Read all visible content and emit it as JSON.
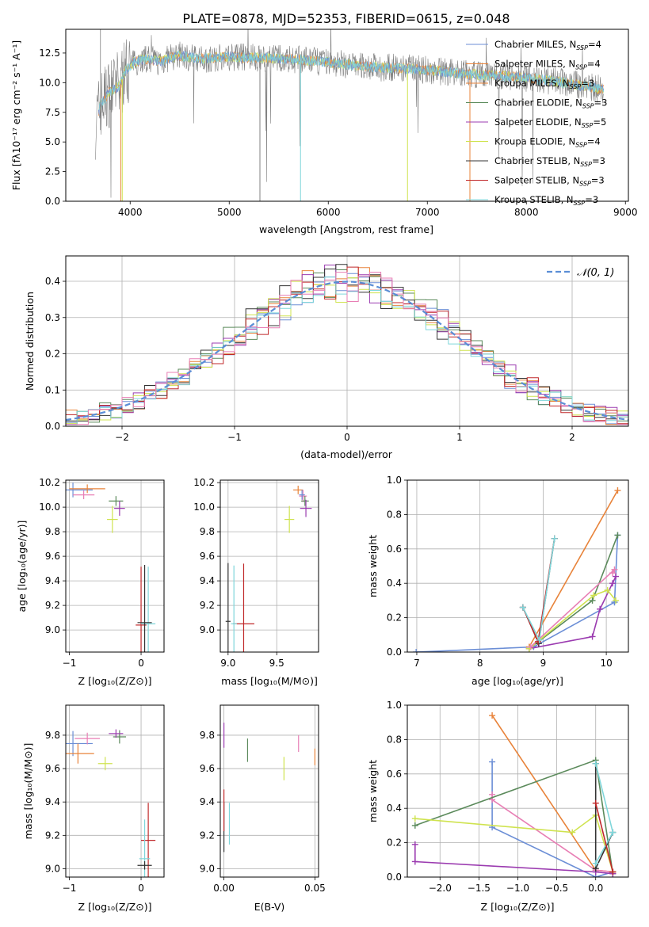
{
  "figure": {
    "title": "PLATE=0878, MJD=52353, FIBERID=0615, z=0.048"
  },
  "colors": {
    "Chabrier MILES": "#6b8ed6",
    "Salpeter MILES": "#e8833a",
    "Kroupa MILES": "#5b8a5b",
    "Chabrier ELODIE": "#5b8a5b",
    "Salpeter ELODIE": "#9b3bb0",
    "Kroupa ELODIE": "#cfe34f",
    "Chabrier STELIB": "#333333",
    "Salpeter STELIB": "#c0282a",
    "Kroupa STELIB": "#7fd6da",
    "spectrum_data": "#808080",
    "gaussian": "#5b8ed6",
    "pink": "#e87fb5"
  },
  "chart_data": [
    {
      "id": "spectrum",
      "type": "line",
      "title": "PLATE=0878, MJD=52353, FIBERID=0615, z=0.048",
      "xlabel": "wavelength [Angstrom, rest frame]",
      "ylabel": "Flux [fλ10⁻¹⁷ erg cm⁻² s⁻¹ A⁻¹]",
      "xlim": [
        3350,
        9030
      ],
      "ylim": [
        0,
        14.5
      ],
      "xticks": [
        "4000",
        "5000",
        "6000",
        "7000",
        "8000",
        "9000"
      ],
      "xtick_values": [
        4000,
        5000,
        6000,
        7000,
        8000,
        9000
      ],
      "yticks": [
        "0.0",
        "2.5",
        "5.0",
        "7.5",
        "10.0",
        "12.5"
      ],
      "ytick_values": [
        0,
        2.5,
        5,
        7.5,
        10,
        12.5
      ],
      "continuum": {
        "x": [
          3650,
          3700,
          3800,
          3900,
          3950,
          4050,
          4150,
          4300,
          4500,
          4700,
          5000,
          5300,
          5600,
          5900,
          6200,
          6500,
          6800,
          7100,
          7400,
          7700,
          8000,
          8300,
          8600,
          8780
        ],
        "y": [
          6.5,
          8.2,
          9.3,
          9.8,
          11.0,
          11.8,
          12.0,
          11.8,
          12.3,
          12.0,
          12.2,
          12.1,
          12.0,
          11.8,
          11.5,
          11.3,
          11.2,
          11.0,
          10.7,
          10.6,
          10.4,
          10.1,
          9.7,
          9.4
        ]
      },
      "legend": [
        {
          "label": "Chabrier MILES, N",
          "sub": "SSP",
          "value": "=4"
        },
        {
          "label": "Salpeter MILES, N",
          "sub": "SSP",
          "value": "=4"
        },
        {
          "label": "Kroupa MILES, N",
          "sub": "SSP",
          "value": "=3"
        },
        {
          "label": "Chabrier ELODIE, N",
          "sub": "SSP",
          "value": "=3"
        },
        {
          "label": "Salpeter ELODIE, N",
          "sub": "SSP",
          "value": "=5"
        },
        {
          "label": "Kroupa ELODIE, N",
          "sub": "SSP",
          "value": "=4"
        },
        {
          "label": "Chabrier STELIB, N",
          "sub": "SSP",
          "value": "=3"
        },
        {
          "label": "Salpeter STELIB, N",
          "sub": "SSP",
          "value": "=3"
        },
        {
          "label": "Kroupa STELIB, N",
          "sub": "SSP",
          "value": "=3"
        }
      ],
      "legend_placement": "top-right",
      "grid": false
    },
    {
      "id": "residuals",
      "type": "histogram",
      "xlabel": "(data-model)/error",
      "ylabel": "Normed distribution",
      "xlim": [
        -2.5,
        2.5
      ],
      "ylim": [
        0,
        0.47
      ],
      "xticks": [
        "−2",
        "−1",
        "0",
        "1",
        "2"
      ],
      "xtick_values": [
        -2,
        -1,
        0,
        1,
        2
      ],
      "yticks": [
        "0.0",
        "0.1",
        "0.2",
        "0.3",
        "0.4"
      ],
      "ytick_values": [
        0,
        0.1,
        0.2,
        0.3,
        0.4
      ],
      "legend_label": "𝒩(0, 1)",
      "legend_placement": "top-right",
      "grid": true
    },
    {
      "id": "age_vs_z",
      "type": "errorbar",
      "xlabel": "Z [log₁₀(Z/Z⊙)]",
      "ylabel": "age  [log₁₀(age/yr)]",
      "xlim": [
        -1.05,
        0.32
      ],
      "ylim": [
        8.82,
        10.22
      ],
      "xticks": [
        "−1",
        "0"
      ],
      "xtick_values": [
        -1,
        0
      ],
      "yticks": [
        "9.0",
        "9.2",
        "9.4",
        "9.6",
        "9.8",
        "10.0",
        "10.2"
      ],
      "ytick_values": [
        9.0,
        9.2,
        9.4,
        9.6,
        9.8,
        10.0,
        10.2
      ],
      "points": [
        {
          "c": "Chabrier MILES",
          "x": -0.95,
          "y": 10.14,
          "ex": 0.55,
          "ey": 0.12
        },
        {
          "c": "Salpeter MILES",
          "x": -0.75,
          "y": 10.15,
          "ex": 0.5,
          "ey": 0.07
        },
        {
          "c": "pink",
          "x": -0.8,
          "y": 10.1,
          "ex": 0.3,
          "ey": 0.07
        },
        {
          "c": "Chabrier ELODIE",
          "x": -0.35,
          "y": 10.05,
          "ex": 0.2,
          "ey": 0.08
        },
        {
          "c": "Salpeter ELODIE",
          "x": -0.3,
          "y": 9.99,
          "ex": 0.15,
          "ey": 0.12
        },
        {
          "c": "Kroupa ELODIE",
          "x": -0.4,
          "y": 9.9,
          "ex": 0.15,
          "ey": 0.22
        },
        {
          "c": "Salpeter STELIB",
          "x": 0.0,
          "y": 9.04,
          "ex": 0.15,
          "ey": 0.95
        },
        {
          "c": "Kroupa STELIB",
          "x": 0.1,
          "y": 9.05,
          "ex": 0.2,
          "ey": 0.93
        },
        {
          "c": "Chabrier STELIB",
          "x": 0.05,
          "y": 9.06,
          "ex": 0.2,
          "ey": 0.94
        }
      ],
      "grid": true
    },
    {
      "id": "age_vs_mass",
      "type": "errorbar",
      "xlabel": "mass [log₁₀(M/M⊙)]",
      "xlim": [
        8.92,
        9.93
      ],
      "ylim": [
        8.82,
        10.22
      ],
      "xticks": [
        "9.0",
        "9.5"
      ],
      "xtick_values": [
        9.0,
        9.5
      ],
      "yticks": [
        "9.0",
        "9.2",
        "9.4",
        "9.6",
        "9.8",
        "10.0",
        "10.2"
      ],
      "ytick_values": [
        9.0,
        9.2,
        9.4,
        9.6,
        9.8,
        10.0,
        10.2
      ],
      "points": [
        {
          "c": "Salpeter MILES",
          "x": 9.72,
          "y": 10.14,
          "ex": 0.1,
          "ey": 0.07
        },
        {
          "c": "pink",
          "x": 9.77,
          "y": 10.09,
          "ex": 0.08,
          "ey": 0.1
        },
        {
          "c": "Chabrier ELODIE",
          "x": 9.79,
          "y": 10.05,
          "ex": 0.08,
          "ey": 0.08
        },
        {
          "c": "Chabrier MILES",
          "x": 9.76,
          "y": 10.1,
          "ex": 0.06,
          "ey": 0.08
        },
        {
          "c": "Salpeter ELODIE",
          "x": 9.8,
          "y": 9.99,
          "ex": 0.12,
          "ey": 0.14
        },
        {
          "c": "Kroupa ELODIE",
          "x": 9.63,
          "y": 9.9,
          "ex": 0.1,
          "ey": 0.22
        },
        {
          "c": "Salpeter STELIB",
          "x": 9.16,
          "y": 9.05,
          "ex": 0.22,
          "ey": 0.98
        },
        {
          "c": "Kroupa STELIB",
          "x": 9.06,
          "y": 9.05,
          "ex": 0.06,
          "ey": 0.95
        },
        {
          "c": "Chabrier STELIB",
          "x": 9.0,
          "y": 9.07,
          "ex": 0.05,
          "ey": 0.95
        }
      ],
      "grid": true
    },
    {
      "id": "weight_vs_age",
      "type": "line",
      "xlabel": "age  [log₁₀(age/yr)]",
      "ylabel": "mass weight",
      "xlim": [
        6.85,
        10.35
      ],
      "ylim": [
        0,
        1.0
      ],
      "xticks": [
        "7",
        "8",
        "9",
        "10"
      ],
      "xtick_values": [
        7,
        8,
        9,
        10
      ],
      "yticks": [
        "0.0",
        "0.2",
        "0.4",
        "0.6",
        "0.8",
        "1.0"
      ],
      "ytick_values": [
        0,
        0.2,
        0.4,
        0.6,
        0.8,
        1.0
      ],
      "series": [
        {
          "c": "Chabrier MILES",
          "x": [
            6.99,
            8.85,
            10.13,
            10.18,
            10.13
          ],
          "y": [
            0.0,
            0.03,
            0.29,
            0.68,
            0.29
          ]
        },
        {
          "c": "Salpeter MILES",
          "x": [
            8.78,
            10.18
          ],
          "y": [
            0.03,
            0.94
          ]
        },
        {
          "c": "Chabrier ELODIE",
          "x": [
            8.78,
            9.78,
            10.18
          ],
          "y": [
            0.02,
            0.3,
            0.68
          ]
        },
        {
          "c": "Salpeter ELODIE",
          "x": [
            8.78,
            9.78,
            9.9,
            10.15,
            10.1
          ],
          "y": [
            0.02,
            0.09,
            0.25,
            0.44,
            0.4
          ]
        },
        {
          "c": "Kroupa ELODIE",
          "x": [
            8.78,
            9.8,
            10.02,
            10.15
          ],
          "y": [
            0.02,
            0.33,
            0.36,
            0.3
          ]
        },
        {
          "c": "pink",
          "x": [
            8.8,
            10.13,
            10.1
          ],
          "y": [
            0.03,
            0.48,
            0.46
          ]
        },
        {
          "c": "Chabrier STELIB",
          "x": [
            8.68,
            8.93,
            9.18
          ],
          "y": [
            0.26,
            0.05,
            0.66
          ]
        },
        {
          "c": "Salpeter STELIB",
          "x": [
            8.68,
            8.92,
            9.18
          ],
          "y": [
            0.26,
            0.06,
            0.66
          ]
        },
        {
          "c": "Kroupa STELIB",
          "x": [
            8.68,
            8.94,
            9.18
          ],
          "y": [
            0.26,
            0.07,
            0.66
          ]
        }
      ],
      "grid": true
    },
    {
      "id": "mass_vs_z",
      "type": "errorbar",
      "xlabel": "Z [log₁₀(Z/Z⊙)]",
      "ylabel": "mass [log₁₀(M/M⊙)]",
      "xlim": [
        -1.05,
        0.32
      ],
      "ylim": [
        8.95,
        9.98
      ],
      "xticks": [
        "−1",
        "0"
      ],
      "xtick_values": [
        -1,
        0
      ],
      "yticks": [
        "9.0",
        "9.2",
        "9.4",
        "9.6",
        "9.8"
      ],
      "ytick_values": [
        9.0,
        9.2,
        9.4,
        9.6,
        9.8
      ],
      "points": [
        {
          "c": "Chabrier MILES",
          "x": -0.95,
          "y": 9.75,
          "ex": 0.55,
          "ey": 0.15
        },
        {
          "c": "pink",
          "x": -0.75,
          "y": 9.78,
          "ex": 0.35,
          "ey": 0.07
        },
        {
          "c": "Salpeter MILES",
          "x": -0.88,
          "y": 9.69,
          "ex": 0.45,
          "ey": 0.12
        },
        {
          "c": "Chabrier ELODIE",
          "x": -0.3,
          "y": 9.79,
          "ex": 0.18,
          "ey": 0.08
        },
        {
          "c": "Salpeter ELODIE",
          "x": -0.35,
          "y": 9.81,
          "ex": 0.2,
          "ey": 0.05
        },
        {
          "c": "Kroupa ELODIE",
          "x": -0.5,
          "y": 9.63,
          "ex": 0.2,
          "ey": 0.08
        },
        {
          "c": "Salpeter STELIB",
          "x": 0.1,
          "y": 9.17,
          "ex": 0.2,
          "ey": 0.45
        },
        {
          "c": "Kroupa STELIB",
          "x": 0.05,
          "y": 9.06,
          "ex": 0.15,
          "ey": 0.47
        },
        {
          "c": "Chabrier STELIB",
          "x": 0.05,
          "y": 9.02,
          "ex": 0.2,
          "ey": 0.05
        }
      ],
      "grid": true
    },
    {
      "id": "mass_vs_ebv",
      "type": "errorbar",
      "xlabel": "E(B-V)",
      "xlim": [
        -0.002,
        0.052
      ],
      "ylim": [
        8.95,
        9.98
      ],
      "xticks": [
        "0.00",
        "0.05"
      ],
      "xtick_values": [
        0,
        0.05
      ],
      "yticks": [
        "9.0",
        "9.2",
        "9.4",
        "9.6",
        "9.8"
      ],
      "ytick_values": [
        9.0,
        9.2,
        9.4,
        9.6,
        9.8
      ],
      "points": [
        {
          "c": "Salpeter ELODIE",
          "x": 0.0,
          "y": 9.8,
          "ex": 0,
          "ey": 0.15
        },
        {
          "c": "Chabrier STELIB",
          "x": 0.0,
          "y": 9.25,
          "ex": 0,
          "ey": 0.3
        },
        {
          "c": "Salpeter STELIB",
          "x": 0.0,
          "y": 9.35,
          "ex": 0,
          "ey": 0.25
        },
        {
          "c": "Kroupa STELIB",
          "x": 0.003,
          "y": 9.27,
          "ex": 0,
          "ey": 0.25
        },
        {
          "c": "Chabrier ELODIE",
          "x": 0.013,
          "y": 9.71,
          "ex": 0,
          "ey": 0.14
        },
        {
          "c": "Kroupa ELODIE",
          "x": 0.033,
          "y": 9.6,
          "ex": 0,
          "ey": 0.14
        },
        {
          "c": "pink",
          "x": 0.041,
          "y": 9.75,
          "ex": 0,
          "ey": 0.1
        },
        {
          "c": "Salpeter MILES",
          "x": 0.05,
          "y": 9.67,
          "ex": 0,
          "ey": 0.1
        }
      ],
      "grid": true
    },
    {
      "id": "weight_vs_z",
      "type": "line",
      "xlabel": "Z [log₁₀(Z/Z⊙)]",
      "ylabel": "mass weight",
      "xlim": [
        -2.42,
        0.42
      ],
      "ylim": [
        0,
        1.0
      ],
      "xticks": [
        "−2.0",
        "−1.5",
        "−1.0",
        "−0.5",
        "0.0"
      ],
      "xtick_values": [
        -2.0,
        -1.5,
        -1.0,
        -0.5,
        0.0
      ],
      "yticks": [
        "0.0",
        "0.2",
        "0.4",
        "0.6",
        "0.8",
        "1.0"
      ],
      "ytick_values": [
        0,
        0.2,
        0.4,
        0.6,
        0.8,
        1.0
      ],
      "series": [
        {
          "c": "Salpeter MILES",
          "x": [
            -1.33,
            0.0,
            0.22
          ],
          "y": [
            0.94,
            0.04,
            0.03
          ]
        },
        {
          "c": "Chabrier MILES",
          "x": [
            -1.33,
            -1.33,
            0.0,
            0.22
          ],
          "y": [
            0.67,
            0.29,
            0.0,
            0.03
          ]
        },
        {
          "c": "pink",
          "x": [
            -1.33,
            -1.33,
            0.0,
            0.22
          ],
          "y": [
            0.48,
            0.45,
            0.04,
            0.03
          ]
        },
        {
          "c": "Chabrier ELODIE",
          "x": [
            -2.32,
            0.0,
            0.22
          ],
          "y": [
            0.3,
            0.68,
            0.02
          ]
        },
        {
          "c": "Kroupa ELODIE",
          "x": [
            -2.32,
            -0.3,
            0.0,
            0.22
          ],
          "y": [
            0.34,
            0.26,
            0.36,
            0.03
          ]
        },
        {
          "c": "Salpeter ELODIE",
          "x": [
            -2.32,
            -2.32,
            0.0,
            0.22
          ],
          "y": [
            0.19,
            0.09,
            0.03,
            0.02
          ]
        },
        {
          "c": "Chabrier STELIB",
          "x": [
            0.0,
            0.0,
            0.22
          ],
          "y": [
            0.66,
            0.05,
            0.26
          ]
        },
        {
          "c": "Kroupa STELIB",
          "x": [
            0.0,
            0.22,
            0.0
          ],
          "y": [
            0.08,
            0.26,
            0.66
          ]
        },
        {
          "c": "Salpeter STELIB",
          "x": [
            0.0,
            0.22
          ],
          "y": [
            0.43,
            0.03
          ]
        }
      ],
      "grid": true
    }
  ]
}
